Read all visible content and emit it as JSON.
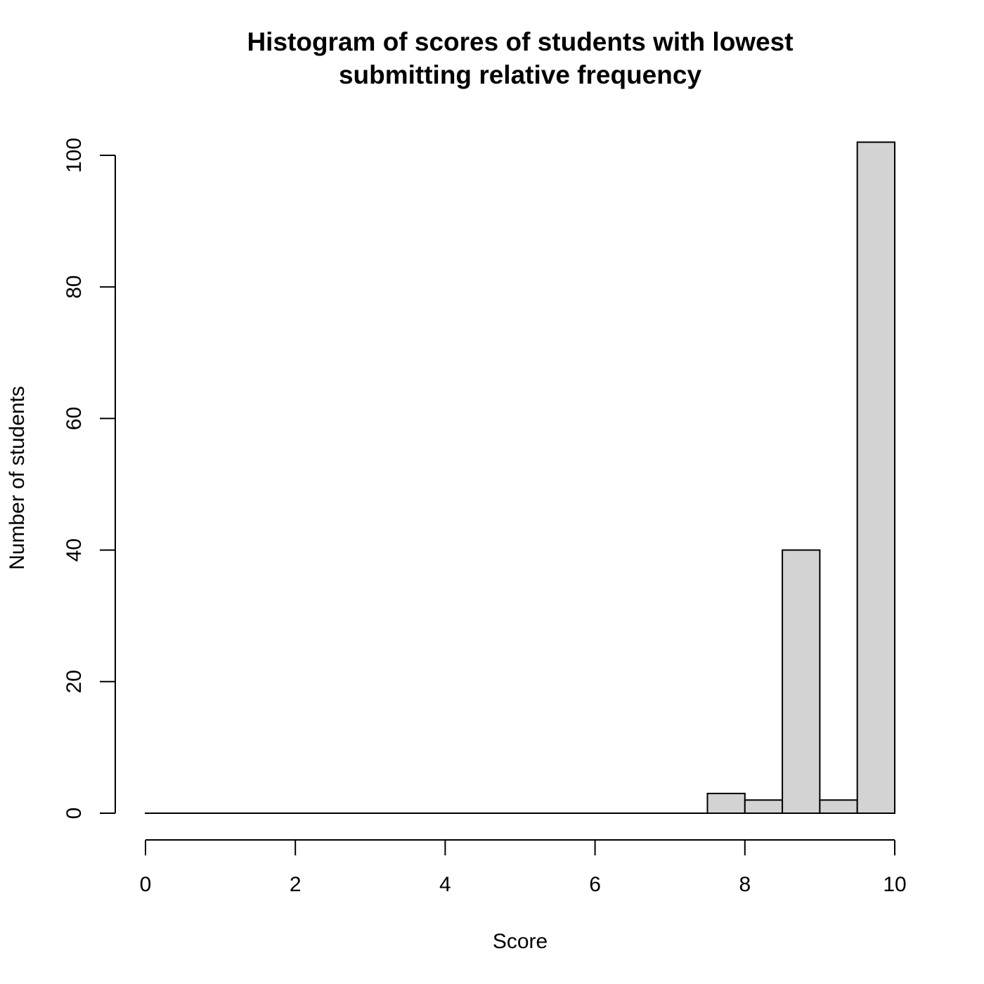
{
  "chart_data": {
    "type": "bar",
    "subtype": "histogram",
    "title_lines": [
      "Histogram of scores of students with lowest",
      "submitting relative frequency"
    ],
    "xlabel": "Score",
    "ylabel": "Number of students",
    "xlim": [
      0,
      10
    ],
    "ylim": [
      0,
      102
    ],
    "x_ticks": [
      0,
      2,
      4,
      6,
      8,
      10
    ],
    "y_ticks": [
      0,
      20,
      40,
      60,
      80,
      100
    ],
    "bins": [
      {
        "x0": 0.0,
        "x1": 0.5,
        "count": 0
      },
      {
        "x0": 0.5,
        "x1": 1.0,
        "count": 0
      },
      {
        "x0": 1.0,
        "x1": 1.5,
        "count": 0
      },
      {
        "x0": 1.5,
        "x1": 2.0,
        "count": 0
      },
      {
        "x0": 2.0,
        "x1": 2.5,
        "count": 0
      },
      {
        "x0": 2.5,
        "x1": 3.0,
        "count": 0
      },
      {
        "x0": 3.0,
        "x1": 3.5,
        "count": 0
      },
      {
        "x0": 3.5,
        "x1": 4.0,
        "count": 0
      },
      {
        "x0": 4.0,
        "x1": 4.5,
        "count": 0
      },
      {
        "x0": 4.5,
        "x1": 5.0,
        "count": 0
      },
      {
        "x0": 5.0,
        "x1": 5.5,
        "count": 0
      },
      {
        "x0": 5.5,
        "x1": 6.0,
        "count": 0
      },
      {
        "x0": 6.0,
        "x1": 6.5,
        "count": 0
      },
      {
        "x0": 6.5,
        "x1": 7.0,
        "count": 0
      },
      {
        "x0": 7.0,
        "x1": 7.5,
        "count": 0
      },
      {
        "x0": 7.5,
        "x1": 8.0,
        "count": 3
      },
      {
        "x0": 8.0,
        "x1": 8.5,
        "count": 2
      },
      {
        "x0": 8.5,
        "x1": 9.0,
        "count": 40
      },
      {
        "x0": 9.0,
        "x1": 9.5,
        "count": 2
      },
      {
        "x0": 9.5,
        "x1": 10.0,
        "count": 102
      }
    ],
    "bar_fill": "#d3d3d3",
    "bar_stroke": "#000000",
    "grid": false,
    "legend": "none"
  }
}
